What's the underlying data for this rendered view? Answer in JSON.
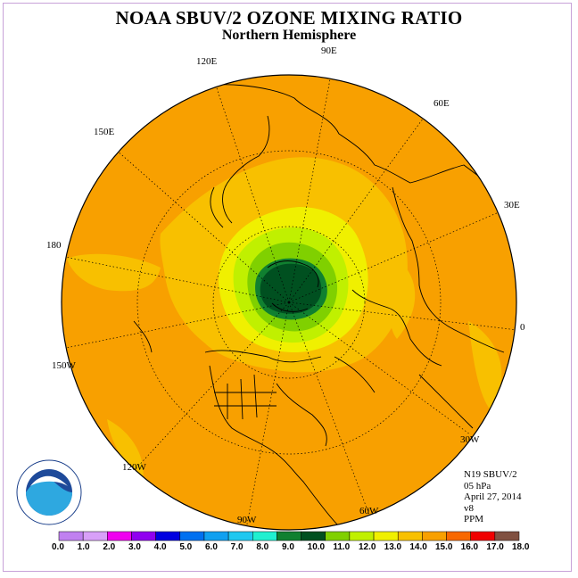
{
  "header": {
    "title": "NOAA SBUV/2 OZONE MIXING RATIO",
    "subtitle": "Northern Hemisphere"
  },
  "longitude_labels": [
    "90E",
    "60E",
    "30E",
    "0",
    "30W",
    "60W",
    "90W",
    "120W",
    "150W",
    "180",
    "150E",
    "120E"
  ],
  "info": {
    "satellite": "N19 SBUV/2",
    "level": "05 hPa",
    "date": "April 27, 2014",
    "version": "v8",
    "units": "PPM"
  },
  "logo": {
    "text": "NOAA",
    "ring_text": "NATIONAL OCEANIC AND ATMOSPHERIC ADMINISTRATION · U.S. DEPARTMENT OF COMMERCE"
  },
  "colorbar": {
    "ticks": [
      "0.0",
      "1.0",
      "2.0",
      "3.0",
      "4.0",
      "5.0",
      "6.0",
      "7.0",
      "8.0",
      "9.0",
      "10.0",
      "11.0",
      "12.0",
      "13.0",
      "14.0",
      "15.0",
      "16.0",
      "17.0",
      "18.0"
    ],
    "colors": [
      "#c080f0",
      "#d8a0f8",
      "#f000f0",
      "#9000f0",
      "#0000e0",
      "#0070f0",
      "#10a0f0",
      "#20c8f0",
      "#20f0d0",
      "#108030",
      "#005020",
      "#80d000",
      "#c0f000",
      "#f0f000",
      "#f8c000",
      "#f8a000",
      "#f86800",
      "#f00000",
      "#805040"
    ]
  },
  "colors": {
    "background_field": "#f8a000",
    "frame": "#c8a2d8"
  }
}
